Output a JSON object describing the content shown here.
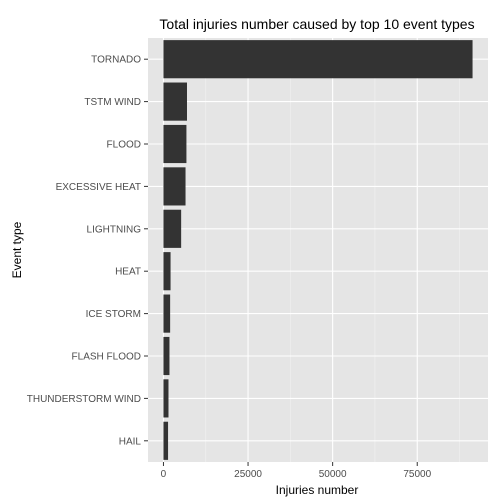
{
  "chart_data": {
    "type": "bar",
    "orientation": "horizontal",
    "title": "Total injuries number caused by top 10 event types",
    "xlabel": "Injuries number",
    "ylabel": "Event type",
    "categories": [
      "TORNADO",
      "TSTM WIND",
      "FLOOD",
      "EXCESSIVE HEAT",
      "LIGHTNING",
      "HEAT",
      "ICE STORM",
      "FLASH FLOOD",
      "THUNDERSTORM WIND",
      "HAIL"
    ],
    "values": [
      91346,
      6957,
      6789,
      6525,
      5230,
      2100,
      1975,
      1777,
      1488,
      1361
    ],
    "xlim": [
      -4567,
      95913
    ],
    "xticks": [
      0,
      25000,
      50000,
      75000
    ],
    "xtick_labels": [
      "0",
      "25000",
      "50000",
      "75000"
    ],
    "grid": true,
    "colors": {
      "panel_background": "#e5e5e5",
      "grid_major": "#ffffff",
      "grid_minor": "#f2f2f2",
      "bar_fill": "#333333"
    }
  }
}
